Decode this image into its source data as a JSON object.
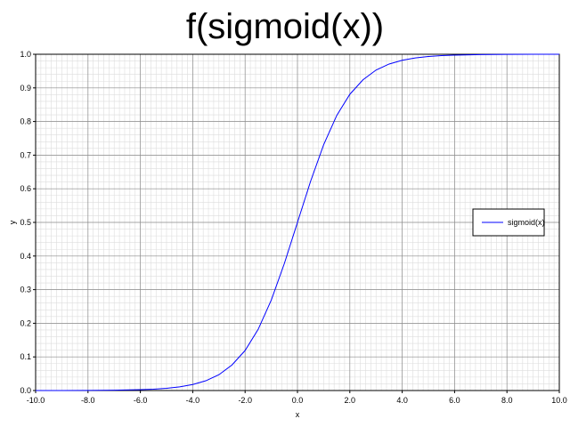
{
  "chart_data": {
    "type": "line",
    "title": "f(sigmoid(x))",
    "xlabel": "x",
    "ylabel": "y",
    "xlim": [
      -10,
      10
    ],
    "ylim": [
      0,
      1
    ],
    "x_ticks": [
      "-10.0",
      "-8.0",
      "-6.0",
      "-4.0",
      "-2.0",
      "0.0",
      "2.0",
      "4.0",
      "6.0",
      "8.0",
      "10.0"
    ],
    "y_ticks": [
      "0.0",
      "0.1",
      "0.2",
      "0.3",
      "0.4",
      "0.5",
      "0.6",
      "0.7",
      "0.8",
      "0.9",
      "1.0"
    ],
    "grid": true,
    "legend_position": "right",
    "series": [
      {
        "name": "sigmoid(x)",
        "color": "#0000ff",
        "x": [
          -10,
          -9,
          -8,
          -7,
          -6,
          -5.5,
          -5,
          -4.5,
          -4,
          -3.5,
          -3,
          -2.5,
          -2,
          -1.5,
          -1,
          -0.5,
          0,
          0.5,
          1,
          1.5,
          2,
          2.5,
          3,
          3.5,
          4,
          4.5,
          5,
          5.5,
          6,
          7,
          8,
          9,
          10
        ],
        "y": [
          5e-05,
          0.0001,
          0.0003,
          0.0009,
          0.0025,
          0.004,
          0.0067,
          0.011,
          0.018,
          0.029,
          0.047,
          0.076,
          0.119,
          0.182,
          0.269,
          0.378,
          0.5,
          0.622,
          0.731,
          0.818,
          0.881,
          0.924,
          0.953,
          0.971,
          0.982,
          0.989,
          0.9933,
          0.996,
          0.9975,
          0.9991,
          0.9997,
          0.9999,
          0.99995
        ]
      }
    ]
  }
}
